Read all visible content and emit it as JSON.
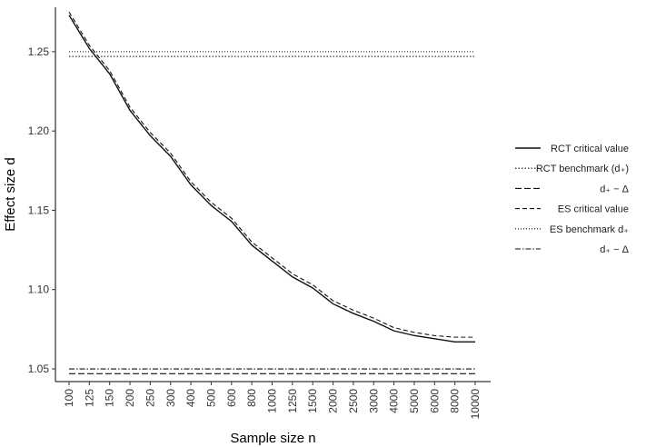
{
  "chart_data": {
    "type": "line",
    "xlabel": "Sample size n",
    "ylabel": "Effect size d",
    "x_tick_labels": [
      "100",
      "125",
      "150",
      "200",
      "250",
      "300",
      "400",
      "500",
      "600",
      "800",
      "1000",
      "1250",
      "1500",
      "2000",
      "2500",
      "3000",
      "4000",
      "5000",
      "6000",
      "8000",
      "10000"
    ],
    "y_ticks": [
      1.05,
      1.1,
      1.15,
      1.2,
      1.25
    ],
    "y_tick_labels": [
      "1.05",
      "1.10",
      "1.15",
      "1.20",
      "1.25"
    ],
    "ylim": [
      1.042,
      1.278
    ],
    "grid": false,
    "legend_position": "right",
    "series": [
      {
        "name": "RCT critical value",
        "style": "solid",
        "values": [
          1.273,
          1.252,
          1.236,
          1.213,
          1.197,
          1.184,
          1.166,
          1.153,
          1.143,
          1.128,
          1.118,
          1.108,
          1.101,
          1.091,
          1.085,
          1.08,
          1.074,
          1.071,
          1.069,
          1.067,
          1.067
        ]
      },
      {
        "name": "RCT benchmark (d₊)",
        "style": "dotted",
        "values": [
          1.247,
          1.247,
          1.247,
          1.247,
          1.247,
          1.247,
          1.247,
          1.247,
          1.247,
          1.247,
          1.247,
          1.247,
          1.247,
          1.247,
          1.247,
          1.247,
          1.247,
          1.247,
          1.247,
          1.247,
          1.247
        ]
      },
      {
        "name": "d₊ − Δ",
        "style": "longdash",
        "values": [
          1.047,
          1.047,
          1.047,
          1.047,
          1.047,
          1.047,
          1.047,
          1.047,
          1.047,
          1.047,
          1.047,
          1.047,
          1.047,
          1.047,
          1.047,
          1.047,
          1.047,
          1.047,
          1.047,
          1.047,
          1.047
        ]
      },
      {
        "name": "ES critical value",
        "style": "dashed",
        "values": [
          1.275,
          1.254,
          1.238,
          1.215,
          1.199,
          1.186,
          1.168,
          1.155,
          1.145,
          1.13,
          1.12,
          1.11,
          1.103,
          1.093,
          1.087,
          1.082,
          1.076,
          1.073,
          1.071,
          1.07,
          1.07
        ]
      },
      {
        "name": "ES benchmark d₊",
        "style": "dotted-fine",
        "values": [
          1.25,
          1.25,
          1.25,
          1.25,
          1.25,
          1.25,
          1.25,
          1.25,
          1.25,
          1.25,
          1.25,
          1.25,
          1.25,
          1.25,
          1.25,
          1.25,
          1.25,
          1.25,
          1.25,
          1.25,
          1.25
        ]
      },
      {
        "name": "d₊ − Δ",
        "style": "dotdash",
        "values": [
          1.05,
          1.05,
          1.05,
          1.05,
          1.05,
          1.05,
          1.05,
          1.05,
          1.05,
          1.05,
          1.05,
          1.05,
          1.05,
          1.05,
          1.05,
          1.05,
          1.05,
          1.05,
          1.05,
          1.05,
          1.05
        ]
      }
    ]
  }
}
